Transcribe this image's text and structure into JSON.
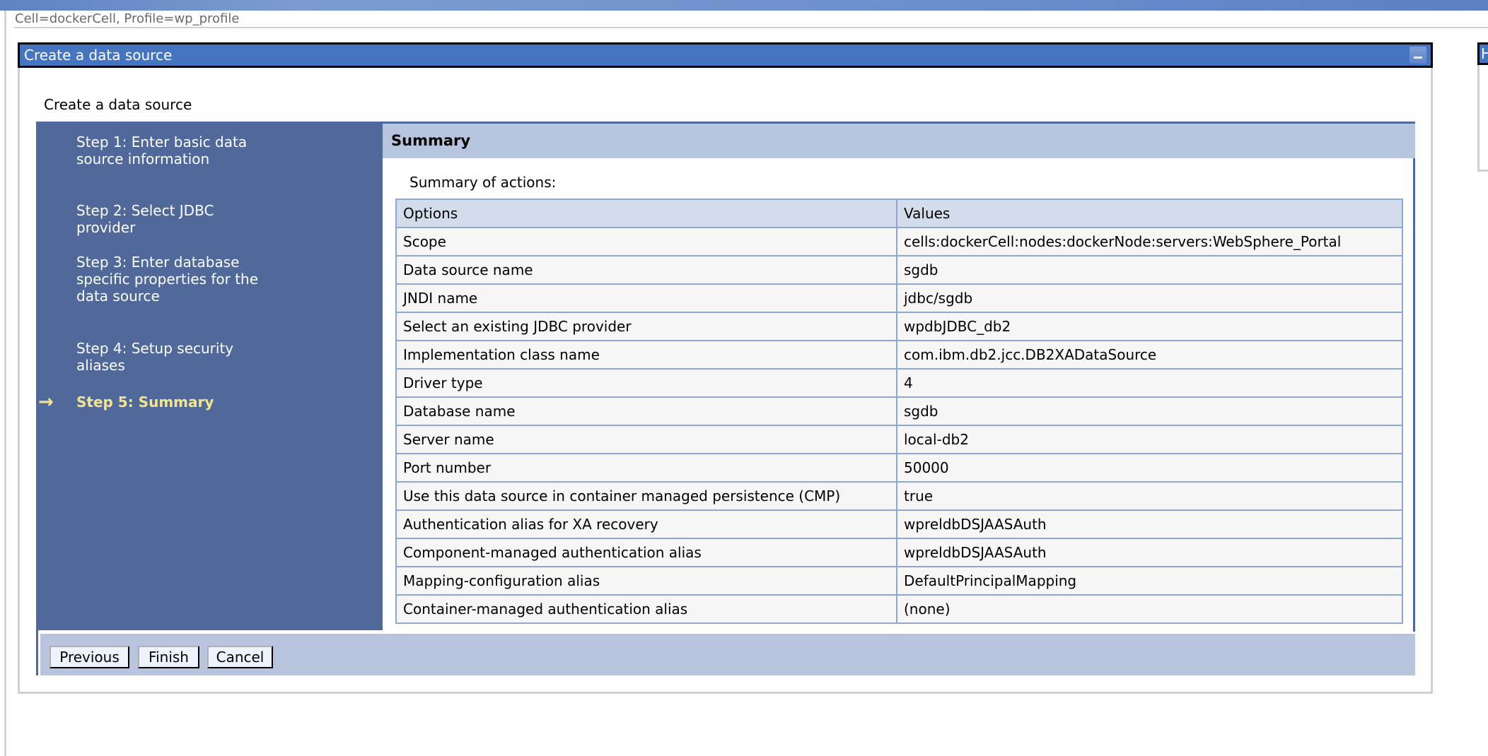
{
  "header": {
    "context": "Cell=dockerCell, Profile=wp_profile"
  },
  "panel": {
    "title": "Create a data source",
    "subtitle": "Create a data source",
    "minimize_icon": "minimize-icon"
  },
  "right_panel": {
    "title_fragment": "H"
  },
  "steps": [
    {
      "label": "Step 1: Enter basic data source information"
    },
    {
      "label": "Step 2: Select JDBC provider"
    },
    {
      "label": "Step 3: Enter database specific properties for the data source"
    },
    {
      "label": "Step 4: Setup security aliases"
    },
    {
      "label": "Step 5: Summary",
      "current": true
    }
  ],
  "current_arrow": "→",
  "summary": {
    "title": "Summary",
    "intro": "Summary of actions:",
    "columns": [
      "Options",
      "Values"
    ],
    "rows": [
      [
        "Scope",
        "cells:dockerCell:nodes:dockerNode:servers:WebSphere_Portal"
      ],
      [
        "Data source name",
        "sgdb"
      ],
      [
        "JNDI name",
        "jdbc/sgdb"
      ],
      [
        "Select an existing JDBC provider",
        "wpdbJDBC_db2"
      ],
      [
        "Implementation class name",
        "com.ibm.db2.jcc.DB2XADataSource"
      ],
      [
        "Driver type",
        "4"
      ],
      [
        "Database name",
        "sgdb"
      ],
      [
        "Server name",
        "local-db2"
      ],
      [
        "Port number",
        "50000"
      ],
      [
        "Use this data source in container managed persistence (CMP)",
        "true"
      ],
      [
        "Authentication alias for XA recovery",
        "wpreldbDSJAASAuth"
      ],
      [
        "Component-managed authentication alias",
        "wpreldbDSJAASAuth"
      ],
      [
        "Mapping-configuration alias",
        "DefaultPrincipalMapping"
      ],
      [
        "Container-managed authentication alias",
        "(none)"
      ]
    ]
  },
  "buttons": {
    "previous": "Previous",
    "finish": "Finish",
    "cancel": "Cancel"
  }
}
